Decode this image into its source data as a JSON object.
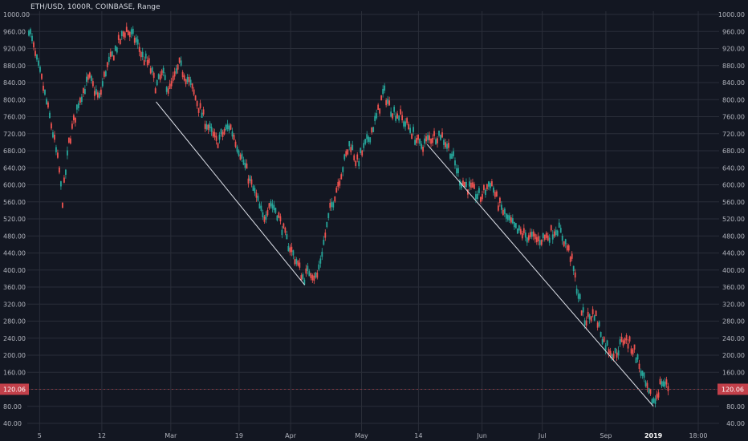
{
  "symbol": {
    "label": "ETH/USD, 1000R, COINBASE, Range"
  },
  "colors": {
    "background": "#131722",
    "grid": "#2a2e39",
    "axis_text": "#b2b5be",
    "axis_text_bold": "#ffffff",
    "up": "#26a69a",
    "down": "#ef5350",
    "trendline": "#e0e3eb",
    "price_badge": "#c2404a",
    "price_badge_text": "#ffffff"
  },
  "chart_data": {
    "type": "candlestick",
    "title": "ETH/USD, 1000R, COINBASE, Range",
    "y_axis": {
      "ylim": [
        40,
        1000
      ],
      "ticks": [
        "1000.00",
        "960.00",
        "920.00",
        "880.00",
        "840.00",
        "800.00",
        "760.00",
        "720.00",
        "680.00",
        "640.00",
        "600.00",
        "560.00",
        "520.00",
        "480.00",
        "440.00",
        "400.00",
        "360.00",
        "320.00",
        "280.00",
        "240.00",
        "200.00",
        "160.00",
        "120.00",
        "80.00",
        "40.00"
      ],
      "sides": [
        "left",
        "right"
      ]
    },
    "x_axis": {
      "ticks": [
        {
          "label": "5",
          "pos": 0.016,
          "bold": false
        },
        {
          "label": "12",
          "pos": 0.109,
          "bold": false
        },
        {
          "label": "Mar",
          "pos": 0.212,
          "bold": false
        },
        {
          "label": "19",
          "pos": 0.314,
          "bold": false
        },
        {
          "label": "Apr",
          "pos": 0.391,
          "bold": false
        },
        {
          "label": "May",
          "pos": 0.497,
          "bold": false
        },
        {
          "label": "14",
          "pos": 0.582,
          "bold": false
        },
        {
          "label": "Jun",
          "pos": 0.677,
          "bold": false
        },
        {
          "label": "Jul",
          "pos": 0.767,
          "bold": false
        },
        {
          "label": "Sep",
          "pos": 0.862,
          "bold": false
        },
        {
          "label": "2019",
          "pos": 0.933,
          "bold": true
        },
        {
          "label": "18:00",
          "pos": 1.0,
          "bold": false
        }
      ]
    },
    "last_price": {
      "value": 120.06,
      "label": "120.06"
    },
    "price_path": [
      [
        0.0,
        970
      ],
      [
        0.01,
        900
      ],
      [
        0.02,
        840
      ],
      [
        0.035,
        730
      ],
      [
        0.045,
        640
      ],
      [
        0.05,
        560
      ],
      [
        0.06,
        700
      ],
      [
        0.075,
        800
      ],
      [
        0.09,
        850
      ],
      [
        0.105,
        800
      ],
      [
        0.115,
        870
      ],
      [
        0.13,
        920
      ],
      [
        0.145,
        965
      ],
      [
        0.16,
        940
      ],
      [
        0.17,
        900
      ],
      [
        0.18,
        880
      ],
      [
        0.19,
        830
      ],
      [
        0.2,
        860
      ],
      [
        0.21,
        820
      ],
      [
        0.225,
        880
      ],
      [
        0.24,
        840
      ],
      [
        0.26,
        760
      ],
      [
        0.28,
        700
      ],
      [
        0.3,
        740
      ],
      [
        0.315,
        680
      ],
      [
        0.33,
        610
      ],
      [
        0.34,
        570
      ],
      [
        0.35,
        520
      ],
      [
        0.36,
        560
      ],
      [
        0.37,
        540
      ],
      [
        0.385,
        470
      ],
      [
        0.4,
        420
      ],
      [
        0.41,
        380
      ],
      [
        0.42,
        400
      ],
      [
        0.43,
        380
      ],
      [
        0.44,
        460
      ],
      [
        0.45,
        540
      ],
      [
        0.465,
        620
      ],
      [
        0.48,
        700
      ],
      [
        0.49,
        650
      ],
      [
        0.505,
        700
      ],
      [
        0.52,
        760
      ],
      [
        0.53,
        820
      ],
      [
        0.54,
        780
      ],
      [
        0.555,
        760
      ],
      [
        0.57,
        730
      ],
      [
        0.585,
        690
      ],
      [
        0.6,
        710
      ],
      [
        0.615,
        720
      ],
      [
        0.63,
        680
      ],
      [
        0.645,
        610
      ],
      [
        0.66,
        590
      ],
      [
        0.675,
        570
      ],
      [
        0.69,
        610
      ],
      [
        0.7,
        560
      ],
      [
        0.715,
        520
      ],
      [
        0.73,
        490
      ],
      [
        0.745,
        480
      ],
      [
        0.76,
        470
      ],
      [
        0.775,
        480
      ],
      [
        0.79,
        500
      ],
      [
        0.8,
        470
      ],
      [
        0.81,
        430
      ],
      [
        0.82,
        350
      ],
      [
        0.83,
        280
      ],
      [
        0.845,
        300
      ],
      [
        0.86,
        230
      ],
      [
        0.875,
        200
      ],
      [
        0.89,
        240
      ],
      [
        0.905,
        210
      ],
      [
        0.915,
        160
      ],
      [
        0.925,
        110
      ],
      [
        0.935,
        90
      ],
      [
        0.945,
        140
      ],
      [
        0.955,
        125
      ]
    ],
    "trendlines": [
      {
        "start": [
          0.19,
          795
        ],
        "end": [
          0.412,
          365
        ]
      },
      {
        "start": [
          0.595,
          695
        ],
        "end": [
          0.933,
          80
        ]
      }
    ]
  }
}
